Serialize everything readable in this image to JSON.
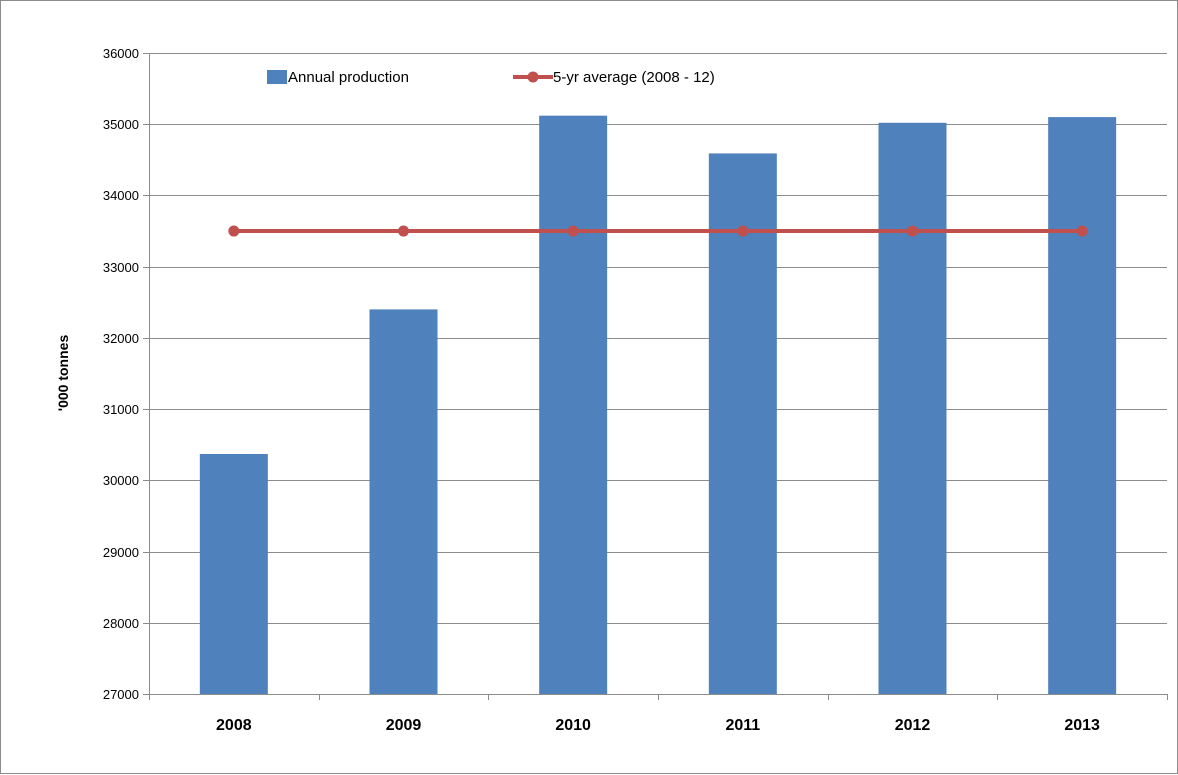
{
  "chart_data": {
    "type": "bar",
    "categories": [
      "2008",
      "2009",
      "2010",
      "2011",
      "2012",
      "2013"
    ],
    "series": [
      {
        "name": "Annual production",
        "type": "bar",
        "color": "#4F81BD",
        "values": [
          30370,
          32400,
          35120,
          34590,
          35020,
          35100
        ]
      },
      {
        "name": "5-yr average (2008 - 12)",
        "type": "line",
        "color": "#C0504D",
        "marker": "circle",
        "values": [
          33500,
          33500,
          33500,
          33500,
          33500,
          33500
        ]
      }
    ],
    "title": "",
    "xlabel": "",
    "ylabel": "'000 tonnes",
    "ylim": [
      27000,
      36000
    ],
    "yticks": [
      "27000",
      "28000",
      "29000",
      "30000",
      "31000",
      "32000",
      "33000",
      "34000",
      "35000",
      "36000"
    ],
    "grid": true,
    "legend_position": "top"
  }
}
